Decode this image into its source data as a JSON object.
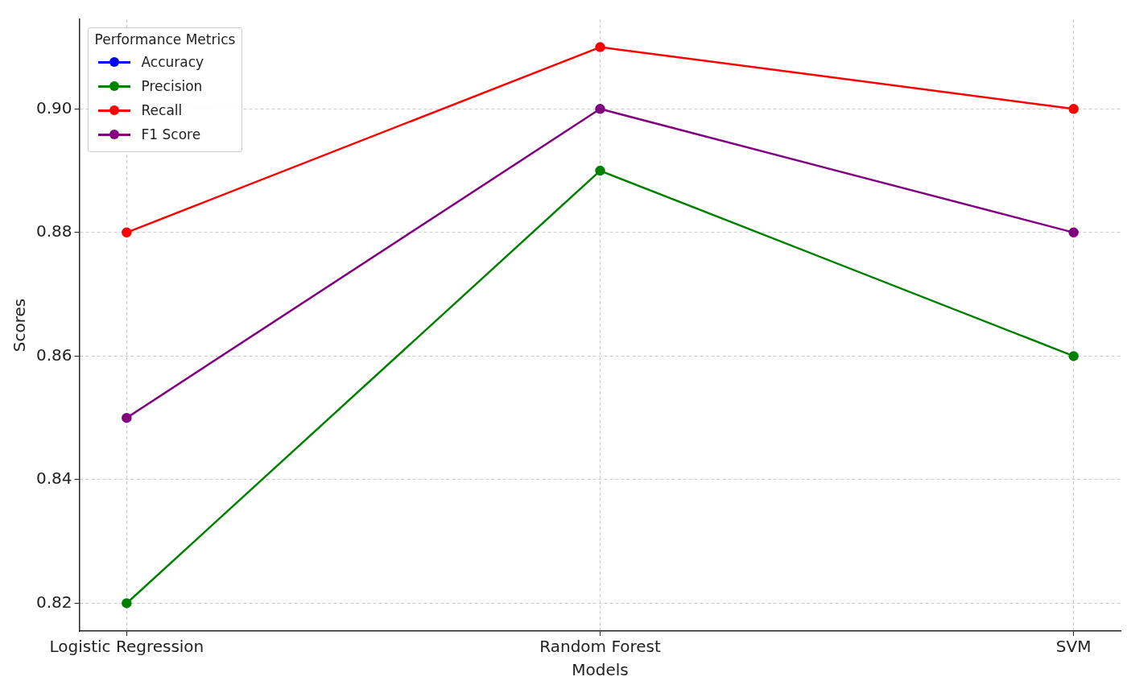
{
  "chart_data": {
    "type": "line",
    "xlabel": "Models",
    "ylabel": "Scores",
    "legend_title": "Performance Metrics",
    "categories": [
      "Logistic Regression",
      "Random Forest",
      "SVM"
    ],
    "series": [
      {
        "name": "Accuracy",
        "color": "#0000ff",
        "values": [
          null,
          null,
          null
        ]
      },
      {
        "name": "Precision",
        "color": "#008000",
        "values": [
          0.82,
          0.89,
          0.86
        ]
      },
      {
        "name": "Recall",
        "color": "#ff0000",
        "values": [
          0.88,
          0.91,
          0.9
        ]
      },
      {
        "name": "F1 Score",
        "color": "#800080",
        "values": [
          0.85,
          0.9,
          0.88
        ]
      }
    ],
    "ylim": [
      0.8155,
      0.9145
    ],
    "yticks": [
      0.82,
      0.84,
      0.86,
      0.88,
      {
        "value": 0.9,
        "label": "0.90"
      }
    ],
    "grid": true,
    "legend": "top left",
    "marker": "circle",
    "line_style": "solid"
  }
}
